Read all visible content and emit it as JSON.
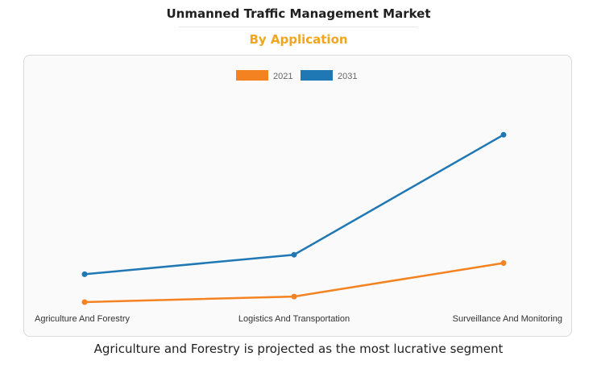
{
  "header": {
    "title": "Unmanned Traffic Management Market",
    "subtitle": "By Application"
  },
  "footer": {
    "caption": "Agriculture and Forestry is projected as the most lucrative segment"
  },
  "colors": {
    "series_2021": "#f58220",
    "series_2031": "#1f77b4",
    "subtitle": "#f2a51e"
  },
  "chart_data": {
    "type": "line",
    "categories": [
      "Agriculture And Forestry",
      "Logistics And Transportation",
      "Surveillance And Monitoring"
    ],
    "series": [
      {
        "name": "2021",
        "values": [
          0.0,
          0.2,
          1.4
        ],
        "color": "#f58220"
      },
      {
        "name": "2031",
        "values": [
          1.0,
          1.7,
          6.0
        ],
        "color": "#1f77b4"
      }
    ],
    "ylim": [
      0,
      6.5
    ],
    "legend": "top-center",
    "grid": false,
    "xlabel": "",
    "ylabel": ""
  }
}
